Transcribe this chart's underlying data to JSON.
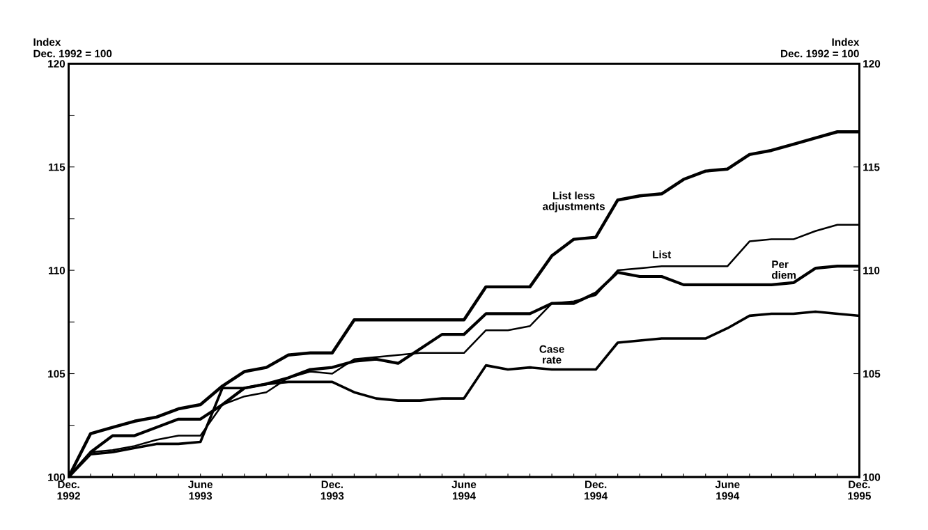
{
  "chart_data": {
    "type": "line",
    "ylabel": "Index\nDec. 1992 = 100",
    "y2label": "Index\nDec. 1992 = 100",
    "categories": [
      "Dec.\n1992",
      null,
      null,
      null,
      null,
      null,
      "June\n1993",
      null,
      null,
      null,
      null,
      null,
      "Dec.\n1993",
      null,
      null,
      null,
      null,
      null,
      "June\n1994",
      null,
      null,
      null,
      null,
      null,
      "Dec.\n1994",
      null,
      null,
      null,
      null,
      null,
      "June\n1994",
      null,
      null,
      null,
      null,
      null,
      "Dec.\n1995"
    ],
    "series": [
      {
        "name": "List less adjustments",
        "color": "#000000",
        "values": [
          100,
          102.1,
          102.4,
          102.7,
          102.9,
          103.3,
          103.5,
          104.4,
          105.1,
          105.3,
          105.9,
          106.0,
          106.0,
          107.6,
          107.6,
          107.6,
          107.6,
          107.6,
          107.6,
          109.2,
          109.2,
          109.2,
          110.7,
          111.5,
          111.6,
          113.4,
          113.6,
          113.7,
          114.4,
          114.8,
          114.9,
          115.6,
          115.8,
          116.1,
          116.4,
          116.7,
          116.7
        ]
      },
      {
        "name": "List",
        "color": "#000000",
        "values": [
          100,
          101.2,
          101.3,
          101.5,
          101.8,
          102.0,
          102.0,
          103.5,
          103.9,
          104.1,
          104.8,
          105.1,
          105.0,
          105.7,
          105.8,
          105.9,
          106.0,
          106.0,
          106.0,
          107.1,
          107.1,
          107.3,
          108.4,
          108.5,
          108.8,
          110.0,
          110.1,
          110.2,
          110.2,
          110.2,
          110.2,
          111.4,
          111.5,
          111.5,
          111.9,
          112.2,
          112.2
        ]
      },
      {
        "name": "Per diem",
        "color": "#000000",
        "values": [
          100,
          101.2,
          102.0,
          102.0,
          102.4,
          102.8,
          102.8,
          103.5,
          104.3,
          104.5,
          104.8,
          105.2,
          105.3,
          105.6,
          105.7,
          105.5,
          106.2,
          106.9,
          106.9,
          107.9,
          107.9,
          107.9,
          108.4,
          108.4,
          108.9,
          109.9,
          109.7,
          109.7,
          109.3,
          109.3,
          109.3,
          109.3,
          109.3,
          109.4,
          110.1,
          110.2,
          110.2
        ]
      },
      {
        "name": "Case rate",
        "color": "#000000",
        "values": [
          100,
          101.1,
          101.2,
          101.4,
          101.6,
          101.6,
          101.7,
          104.3,
          104.3,
          104.5,
          104.6,
          104.6,
          104.6,
          104.1,
          103.8,
          103.7,
          103.7,
          103.8,
          103.8,
          105.4,
          105.2,
          105.3,
          105.2,
          105.2,
          105.2,
          106.5,
          106.6,
          106.7,
          106.7,
          106.7,
          107.2,
          107.8,
          107.9,
          107.9,
          108.0,
          107.9,
          107.8
        ]
      }
    ],
    "ylim": [
      100,
      120
    ],
    "yticks": [
      100,
      {
        "value": 102.5,
        "label": null
      },
      105,
      {
        "value": 107.5,
        "label": null
      },
      110,
      {
        "value": 112.5,
        "label": null
      },
      115,
      {
        "value": 117.5,
        "label": null
      },
      120
    ],
    "y2lim": [
      100,
      120
    ],
    "y2ticks": [
      100,
      105,
      110,
      115,
      120
    ],
    "grid": false,
    "legend": false,
    "line_style": "solid",
    "marker": "none"
  }
}
